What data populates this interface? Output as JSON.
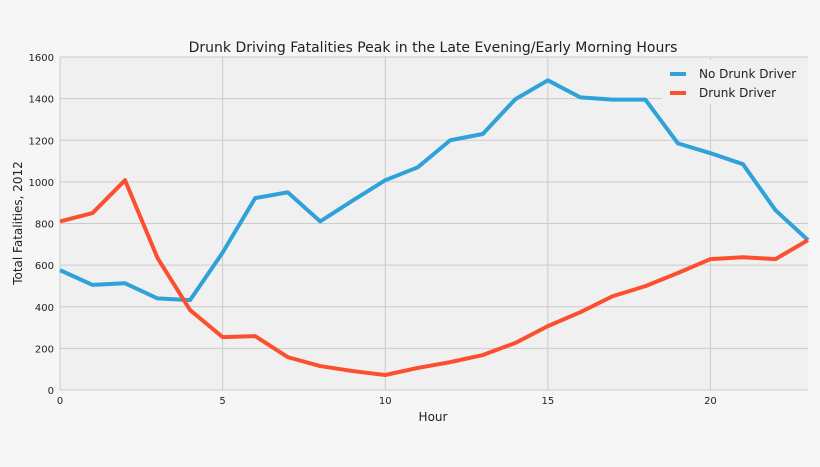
{
  "chart_data": {
    "type": "line",
    "title": "Drunk Driving Fatalities Peak in the Late Evening/Early Morning Hours",
    "xlabel": "Hour",
    "ylabel": "Total Fatalities, 2012",
    "xlim": [
      0,
      23
    ],
    "ylim": [
      0,
      1600
    ],
    "xticks": [
      0,
      5,
      10,
      15,
      20
    ],
    "yticks": [
      0,
      200,
      400,
      600,
      800,
      1000,
      1200,
      1400,
      1600
    ],
    "grid": true,
    "legend": "top-right",
    "x": [
      0,
      1,
      2,
      3,
      4,
      5,
      6,
      7,
      8,
      9,
      10,
      11,
      12,
      13,
      14,
      15,
      16,
      17,
      18,
      19,
      20,
      21,
      22,
      23
    ],
    "series": [
      {
        "name": "No Drunk Driver",
        "color": "#30a2da",
        "values": [
          576,
          505,
          513,
          440,
          432,
          660,
          922,
          950,
          810,
          910,
          1008,
          1070,
          1200,
          1230,
          1397,
          1488,
          1406,
          1395,
          1395,
          1185,
          1138,
          1085,
          864,
          720
        ]
      },
      {
        "name": "Drunk Driver",
        "color": "#fc4f30",
        "values": [
          810,
          850,
          1008,
          634,
          384,
          254,
          259,
          158,
          115,
          91,
          72,
          106,
          134,
          168,
          226,
          307,
          374,
          451,
          499,
          562,
          629,
          638,
          629,
          720
        ]
      }
    ]
  }
}
